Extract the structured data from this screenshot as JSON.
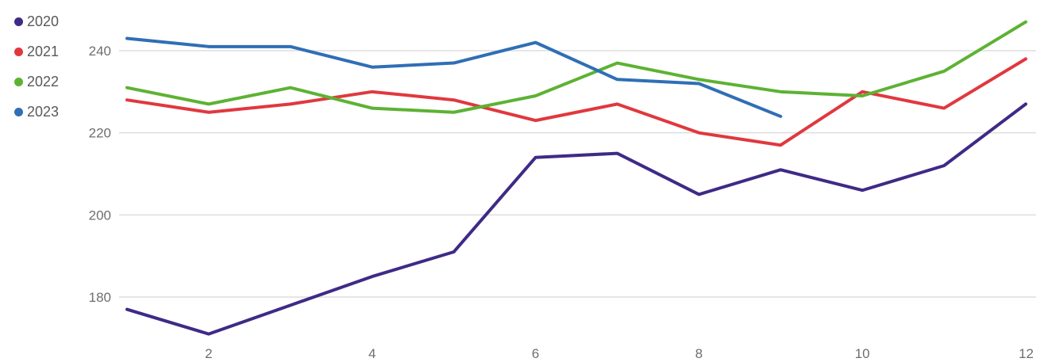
{
  "chart_data": {
    "type": "line",
    "title": "",
    "xlabel": "",
    "ylabel": "",
    "xlim": [
      1,
      12
    ],
    "ylim": [
      170,
      248
    ],
    "x_ticks": [
      2,
      4,
      6,
      8,
      10,
      12
    ],
    "y_ticks": [
      180,
      200,
      220,
      240
    ],
    "grid": "horizontal",
    "legend_position": "top-left",
    "series": [
      {
        "name": "2020",
        "color": "#3f2a86",
        "x": [
          1,
          2,
          3,
          4,
          5,
          6,
          7,
          8,
          9,
          10,
          11,
          12
        ],
        "values": [
          177,
          171,
          178,
          185,
          191,
          214,
          215,
          205,
          211,
          206,
          212,
          227
        ]
      },
      {
        "name": "2021",
        "color": "#e0383e",
        "x": [
          1,
          2,
          3,
          4,
          5,
          6,
          7,
          8,
          9,
          10,
          11,
          12
        ],
        "values": [
          228,
          225,
          227,
          230,
          228,
          223,
          227,
          220,
          217,
          230,
          226,
          238
        ]
      },
      {
        "name": "2022",
        "color": "#5db233",
        "x": [
          1,
          2,
          3,
          4,
          5,
          6,
          7,
          8,
          9,
          10,
          11,
          12
        ],
        "values": [
          231,
          227,
          231,
          226,
          225,
          229,
          237,
          233,
          230,
          229,
          235,
          247
        ]
      },
      {
        "name": "2023",
        "color": "#2f6fb5",
        "x": [
          1,
          2,
          3,
          4,
          5,
          6,
          7,
          8,
          9
        ],
        "values": [
          243,
          241,
          241,
          236,
          237,
          242,
          233,
          232,
          224
        ]
      }
    ]
  }
}
